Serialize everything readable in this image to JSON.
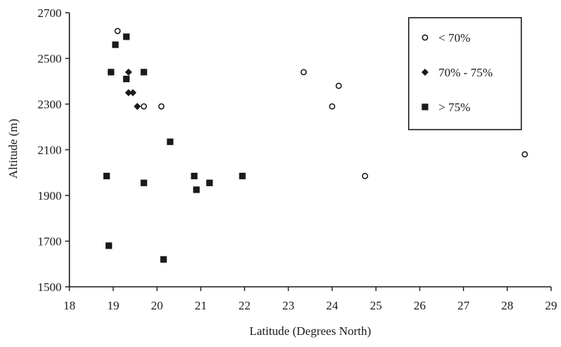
{
  "chart_data": {
    "type": "scatter",
    "title": "",
    "xlabel": "Latitude (Degrees North)",
    "ylabel": "Altitude (m)",
    "xlim": [
      18,
      29
    ],
    "ylim": [
      1500,
      2700
    ],
    "xticks": [
      18,
      19,
      20,
      21,
      22,
      23,
      24,
      25,
      26,
      27,
      28,
      29
    ],
    "yticks": [
      1500,
      1700,
      1900,
      2100,
      2300,
      2500,
      2700
    ],
    "grid": false,
    "legend_position": "top-right",
    "series": [
      {
        "name": "< 70%",
        "marker": "open-circle",
        "color": "#1a1a1a",
        "points": [
          {
            "x": 19.1,
            "y": 2620
          },
          {
            "x": 19.7,
            "y": 2290
          },
          {
            "x": 20.1,
            "y": 2290
          },
          {
            "x": 23.35,
            "y": 2440
          },
          {
            "x": 24.15,
            "y": 2380
          },
          {
            "x": 24.0,
            "y": 2290
          },
          {
            "x": 24.75,
            "y": 1985
          },
          {
            "x": 28.4,
            "y": 2080
          }
        ]
      },
      {
        "name": "70% - 75%",
        "marker": "diamond",
        "color": "#1a1a1a",
        "points": [
          {
            "x": 18.95,
            "y": 2440
          },
          {
            "x": 19.35,
            "y": 2440
          },
          {
            "x": 19.35,
            "y": 2350
          },
          {
            "x": 19.45,
            "y": 2350
          },
          {
            "x": 19.55,
            "y": 2290
          }
        ]
      },
      {
        "name": "> 75%",
        "marker": "filled-square",
        "color": "#1a1a1a",
        "points": [
          {
            "x": 19.3,
            "y": 2595
          },
          {
            "x": 19.05,
            "y": 2560
          },
          {
            "x": 18.95,
            "y": 2440
          },
          {
            "x": 19.7,
            "y": 2440
          },
          {
            "x": 19.3,
            "y": 2410
          },
          {
            "x": 20.3,
            "y": 2135
          },
          {
            "x": 18.85,
            "y": 1985
          },
          {
            "x": 20.85,
            "y": 1985
          },
          {
            "x": 21.95,
            "y": 1985
          },
          {
            "x": 19.7,
            "y": 1955
          },
          {
            "x": 21.2,
            "y": 1955
          },
          {
            "x": 20.9,
            "y": 1925
          },
          {
            "x": 18.9,
            "y": 1680
          },
          {
            "x": 20.15,
            "y": 1620
          }
        ]
      }
    ]
  }
}
